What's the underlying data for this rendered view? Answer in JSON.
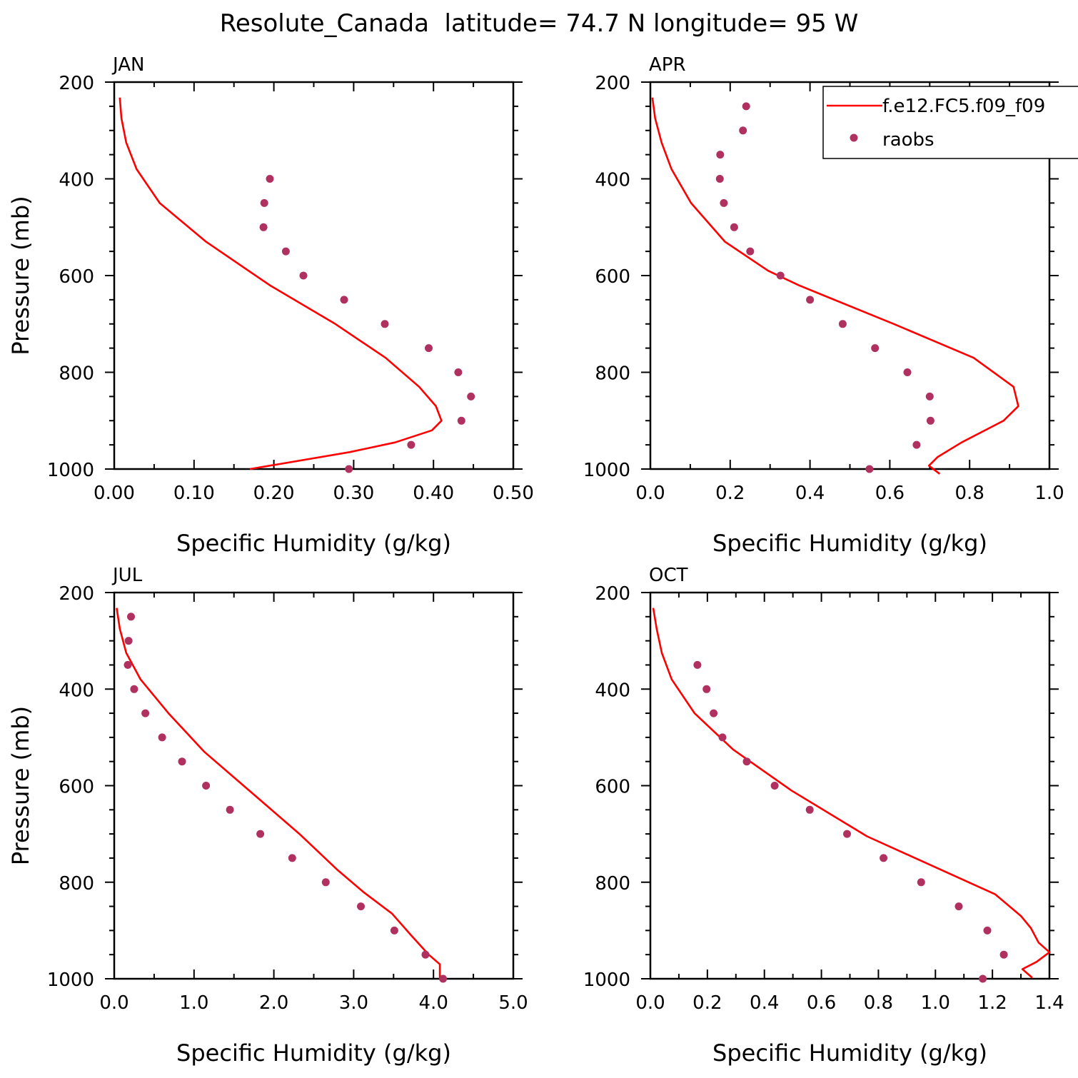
{
  "figure": {
    "title": "Resolute_Canada  latitude= 74.7 N longitude= 95 W"
  },
  "colors": {
    "model_line": "#ff0000",
    "obs_marker": "#b03060",
    "axes": "#000000"
  },
  "legend": {
    "placement": "top-right",
    "entries": [
      {
        "label": "f.e12.FC5.f09_f09",
        "style": "line",
        "color": "#ff0000"
      },
      {
        "label": "raobs",
        "style": "marker",
        "color": "#b03060"
      }
    ]
  },
  "chart_data": [
    {
      "type": "line",
      "title": "JAN",
      "xlabel": "Specific Humidity (g/kg)",
      "ylabel": "Pressure (mb)",
      "xlim": [
        0,
        0.5
      ],
      "ylim": [
        1000,
        200
      ],
      "xticks": [
        0,
        0.1,
        0.2,
        0.3,
        0.4,
        0.5
      ],
      "xtick_labels": [
        "0.00",
        "0.10",
        "0.20",
        "0.30",
        "0.40",
        "0.50"
      ],
      "yticks": [
        200,
        400,
        600,
        800,
        1000
      ],
      "ytick_labels": [
        "200",
        "400",
        "600",
        "800",
        "1000"
      ],
      "series": [
        {
          "name": "f.e12.FC5.f09_f09",
          "kind": "line",
          "x": [
            0.007,
            0.009,
            0.015,
            0.028,
            0.057,
            0.115,
            0.195,
            0.277,
            0.34,
            0.382,
            0.403,
            0.41,
            0.398,
            0.352,
            0.295,
            0.17
          ],
          "y": [
            232,
            275,
            325,
            380,
            450,
            530,
            620,
            700,
            770,
            830,
            870,
            900,
            920,
            945,
            965,
            1000
          ]
        },
        {
          "name": "raobs",
          "kind": "scatter",
          "x": [
            0.195,
            0.188,
            0.187,
            0.215,
            0.237,
            0.288,
            0.339,
            0.394,
            0.431,
            0.447,
            0.435,
            0.372,
            0.294
          ],
          "y": [
            400,
            450,
            500,
            550,
            600,
            650,
            700,
            750,
            800,
            850,
            900,
            950,
            1000
          ]
        }
      ]
    },
    {
      "type": "line",
      "title": "APR",
      "xlabel": "Specific Humidity (g/kg)",
      "ylabel": "",
      "xlim": [
        0,
        1.0
      ],
      "ylim": [
        1000,
        200
      ],
      "xticks": [
        0,
        0.2,
        0.4,
        0.6,
        0.8,
        1.0
      ],
      "xtick_labels": [
        "0.0",
        "0.2",
        "0.4",
        "0.6",
        "0.8",
        "1.0"
      ],
      "yticks": [
        200,
        400,
        600,
        800,
        1000
      ],
      "ytick_labels": [
        "200",
        "400",
        "600",
        "800",
        "1000"
      ],
      "series": [
        {
          "name": "f.e12.FC5.f09_f09",
          "kind": "line",
          "x": [
            0.005,
            0.012,
            0.028,
            0.053,
            0.102,
            0.187,
            0.295,
            0.372,
            0.61,
            0.81,
            0.91,
            0.922,
            0.885,
            0.78,
            0.72,
            0.698,
            0.725
          ],
          "y": [
            232,
            275,
            325,
            380,
            450,
            530,
            590,
            620,
            700,
            770,
            830,
            870,
            900,
            945,
            975,
            993,
            1010
          ]
        },
        {
          "name": "raobs",
          "kind": "scatter",
          "x": [
            0.24,
            0.232,
            0.175,
            0.174,
            0.184,
            0.21,
            0.25,
            0.326,
            0.4,
            0.482,
            0.563,
            0.644,
            0.7,
            0.702,
            0.667,
            0.549
          ],
          "y": [
            250,
            300,
            350,
            400,
            450,
            500,
            550,
            600,
            650,
            700,
            750,
            800,
            850,
            900,
            950,
            1000
          ]
        }
      ]
    },
    {
      "type": "line",
      "title": "JUL",
      "xlabel": "Specific Humidity (g/kg)",
      "ylabel": "Pressure (mb)",
      "xlim": [
        0,
        5.0
      ],
      "ylim": [
        1000,
        200
      ],
      "xticks": [
        0,
        1,
        2,
        3,
        4,
        5
      ],
      "xtick_labels": [
        "0.0",
        "1.0",
        "2.0",
        "3.0",
        "4.0",
        "5.0"
      ],
      "yticks": [
        200,
        400,
        600,
        800,
        1000
      ],
      "ytick_labels": [
        "200",
        "400",
        "600",
        "800",
        "1000"
      ],
      "series": [
        {
          "name": "f.e12.FC5.f09_f09",
          "kind": "line",
          "x": [
            0.03,
            0.07,
            0.15,
            0.33,
            0.68,
            1.13,
            1.76,
            2.32,
            2.8,
            3.12,
            3.48,
            3.72,
            3.94,
            4.08,
            4.08
          ],
          "y": [
            232,
            275,
            325,
            380,
            450,
            530,
            620,
            700,
            775,
            820,
            865,
            910,
            950,
            970,
            1000
          ]
        },
        {
          "name": "raobs",
          "kind": "scatter",
          "x": [
            0.21,
            0.18,
            0.17,
            0.25,
            0.39,
            0.6,
            0.85,
            1.15,
            1.45,
            1.83,
            2.23,
            2.65,
            3.09,
            3.51,
            3.9,
            4.12
          ],
          "y": [
            250,
            300,
            350,
            400,
            450,
            500,
            550,
            600,
            650,
            700,
            750,
            800,
            850,
            900,
            950,
            1000
          ]
        }
      ]
    },
    {
      "type": "line",
      "title": "OCT",
      "xlabel": "Specific Humidity (g/kg)",
      "ylabel": "",
      "xlim": [
        0,
        1.4
      ],
      "ylim": [
        1000,
        200
      ],
      "xticks": [
        0,
        0.2,
        0.4,
        0.6,
        0.8,
        1.0,
        1.2,
        1.4
      ],
      "xtick_labels": [
        "0.0",
        "0.2",
        "0.4",
        "0.6",
        "0.8",
        "1.0",
        "1.2",
        "1.4"
      ],
      "yticks": [
        200,
        400,
        600,
        800,
        1000
      ],
      "ytick_labels": [
        "200",
        "400",
        "600",
        "800",
        "1000"
      ],
      "series": [
        {
          "name": "f.e12.FC5.f09_f09",
          "kind": "line",
          "x": [
            0.01,
            0.022,
            0.04,
            0.075,
            0.155,
            0.29,
            0.495,
            0.76,
            1.21,
            1.3,
            1.335,
            1.362,
            1.4,
            1.355,
            1.305,
            1.34
          ],
          "y": [
            232,
            275,
            325,
            380,
            450,
            525,
            610,
            705,
            825,
            870,
            895,
            925,
            945,
            965,
            980,
            998
          ]
        },
        {
          "name": "raobs",
          "kind": "scatter",
          "x": [
            0.165,
            0.197,
            0.222,
            0.253,
            0.338,
            0.436,
            0.559,
            0.69,
            0.818,
            0.95,
            1.082,
            1.182,
            1.24,
            1.166
          ],
          "y": [
            350,
            400,
            450,
            500,
            550,
            600,
            650,
            700,
            750,
            800,
            850,
            900,
            950,
            1000
          ]
        }
      ]
    }
  ]
}
